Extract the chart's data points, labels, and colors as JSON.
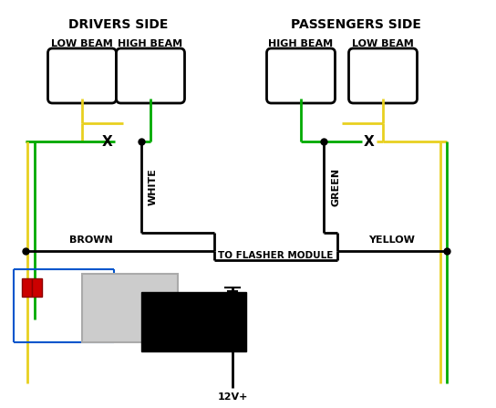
{
  "bg_color": "#ffffff",
  "drivers_side_label": "DRIVERS SIDE",
  "passengers_side_label": "PASSENGERS SIDE",
  "low_beam_label_left": "LOW BEAM",
  "high_beam_label_left": "HIGH BEAM",
  "high_beam_label_right": "HIGH BEAM",
  "low_beam_label_right": "LOW BEAM",
  "white_label": "WHITE",
  "green_label": "GREEN",
  "brown_label": "BROWN",
  "yellow_label": "YELLOW",
  "flasher_label": "TO FLASHER MODULE",
  "ground_label": "12V+",
  "colors": {
    "yellow": "#e8d020",
    "green": "#00aa00",
    "black": "#000000",
    "red": "#cc0000",
    "blue": "#0055cc",
    "gray": "#aaaaaa",
    "lightgray": "#cccccc"
  },
  "lw": 2.0
}
